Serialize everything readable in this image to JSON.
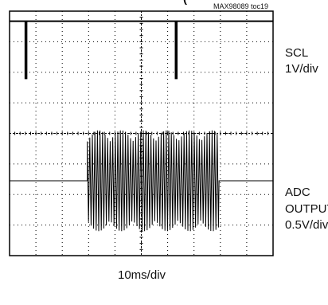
{
  "figure_tag": "MAX98089 toc19",
  "top_title_fragment": "(",
  "chart_data": {
    "type": "line",
    "time_scale": "10ms/div",
    "divisions": {
      "x": 10,
      "y": 8
    },
    "grid": "dotted graticule with center cross",
    "series": [
      {
        "name": "SCL",
        "label_lines": [
          "SCL",
          "1V/div"
        ],
        "description": "high-level trace with two short low pulses",
        "pulses_at_div": [
          0.6,
          6.3
        ]
      },
      {
        "name": "ADC OUTPUT",
        "label_lines": [
          "ADC",
          "OUTPUT",
          "0.5V/div"
        ],
        "description": "baseline with an oscillating burst",
        "burst_start_div": 2.95,
        "burst_end_div": 7.95
      }
    ]
  }
}
